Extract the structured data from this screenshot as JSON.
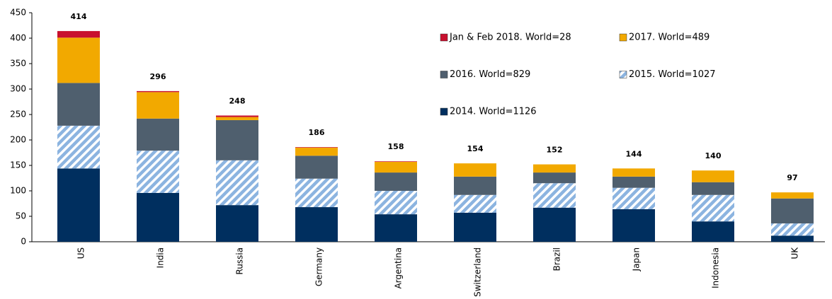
{
  "chart_data": {
    "type": "stacked_bar",
    "categories": [
      "US",
      "India",
      "Russia",
      "Germany",
      "Argentina",
      "Switzerland",
      "Brazil",
      "Japan",
      "Indonesia",
      "UK"
    ],
    "series": [
      {
        "name": "2014. World=1126",
        "color": "#002f5f",
        "values": [
          144,
          96,
          72,
          68,
          54,
          57,
          67,
          64,
          40,
          12
        ]
      },
      {
        "name": "2015. World=1027",
        "color": "#8cb4e0",
        "pattern": "hatch",
        "values": [
          84,
          83,
          88,
          56,
          46,
          35,
          48,
          42,
          52,
          24
        ]
      },
      {
        "name": "2016. World=829",
        "color": "#4f5f6e",
        "values": [
          84,
          63,
          79,
          45,
          36,
          36,
          21,
          22,
          25,
          49
        ]
      },
      {
        "name": "2017. World=489",
        "color": "#f2a900",
        "values": [
          89,
          52,
          6,
          16,
          21,
          26,
          16,
          16,
          23,
          12
        ]
      },
      {
        "name": "Jan & Feb 2018. World=28",
        "color": "#c8102e",
        "values": [
          13,
          2,
          3,
          1,
          1,
          0,
          0,
          0,
          0,
          0
        ]
      }
    ],
    "totals": [
      414,
      296,
      248,
      186,
      158,
      154,
      152,
      144,
      140,
      97
    ],
    "ylim": [
      0,
      450
    ],
    "yticks": [
      0,
      50,
      100,
      150,
      200,
      250,
      300,
      350,
      400,
      450
    ]
  }
}
